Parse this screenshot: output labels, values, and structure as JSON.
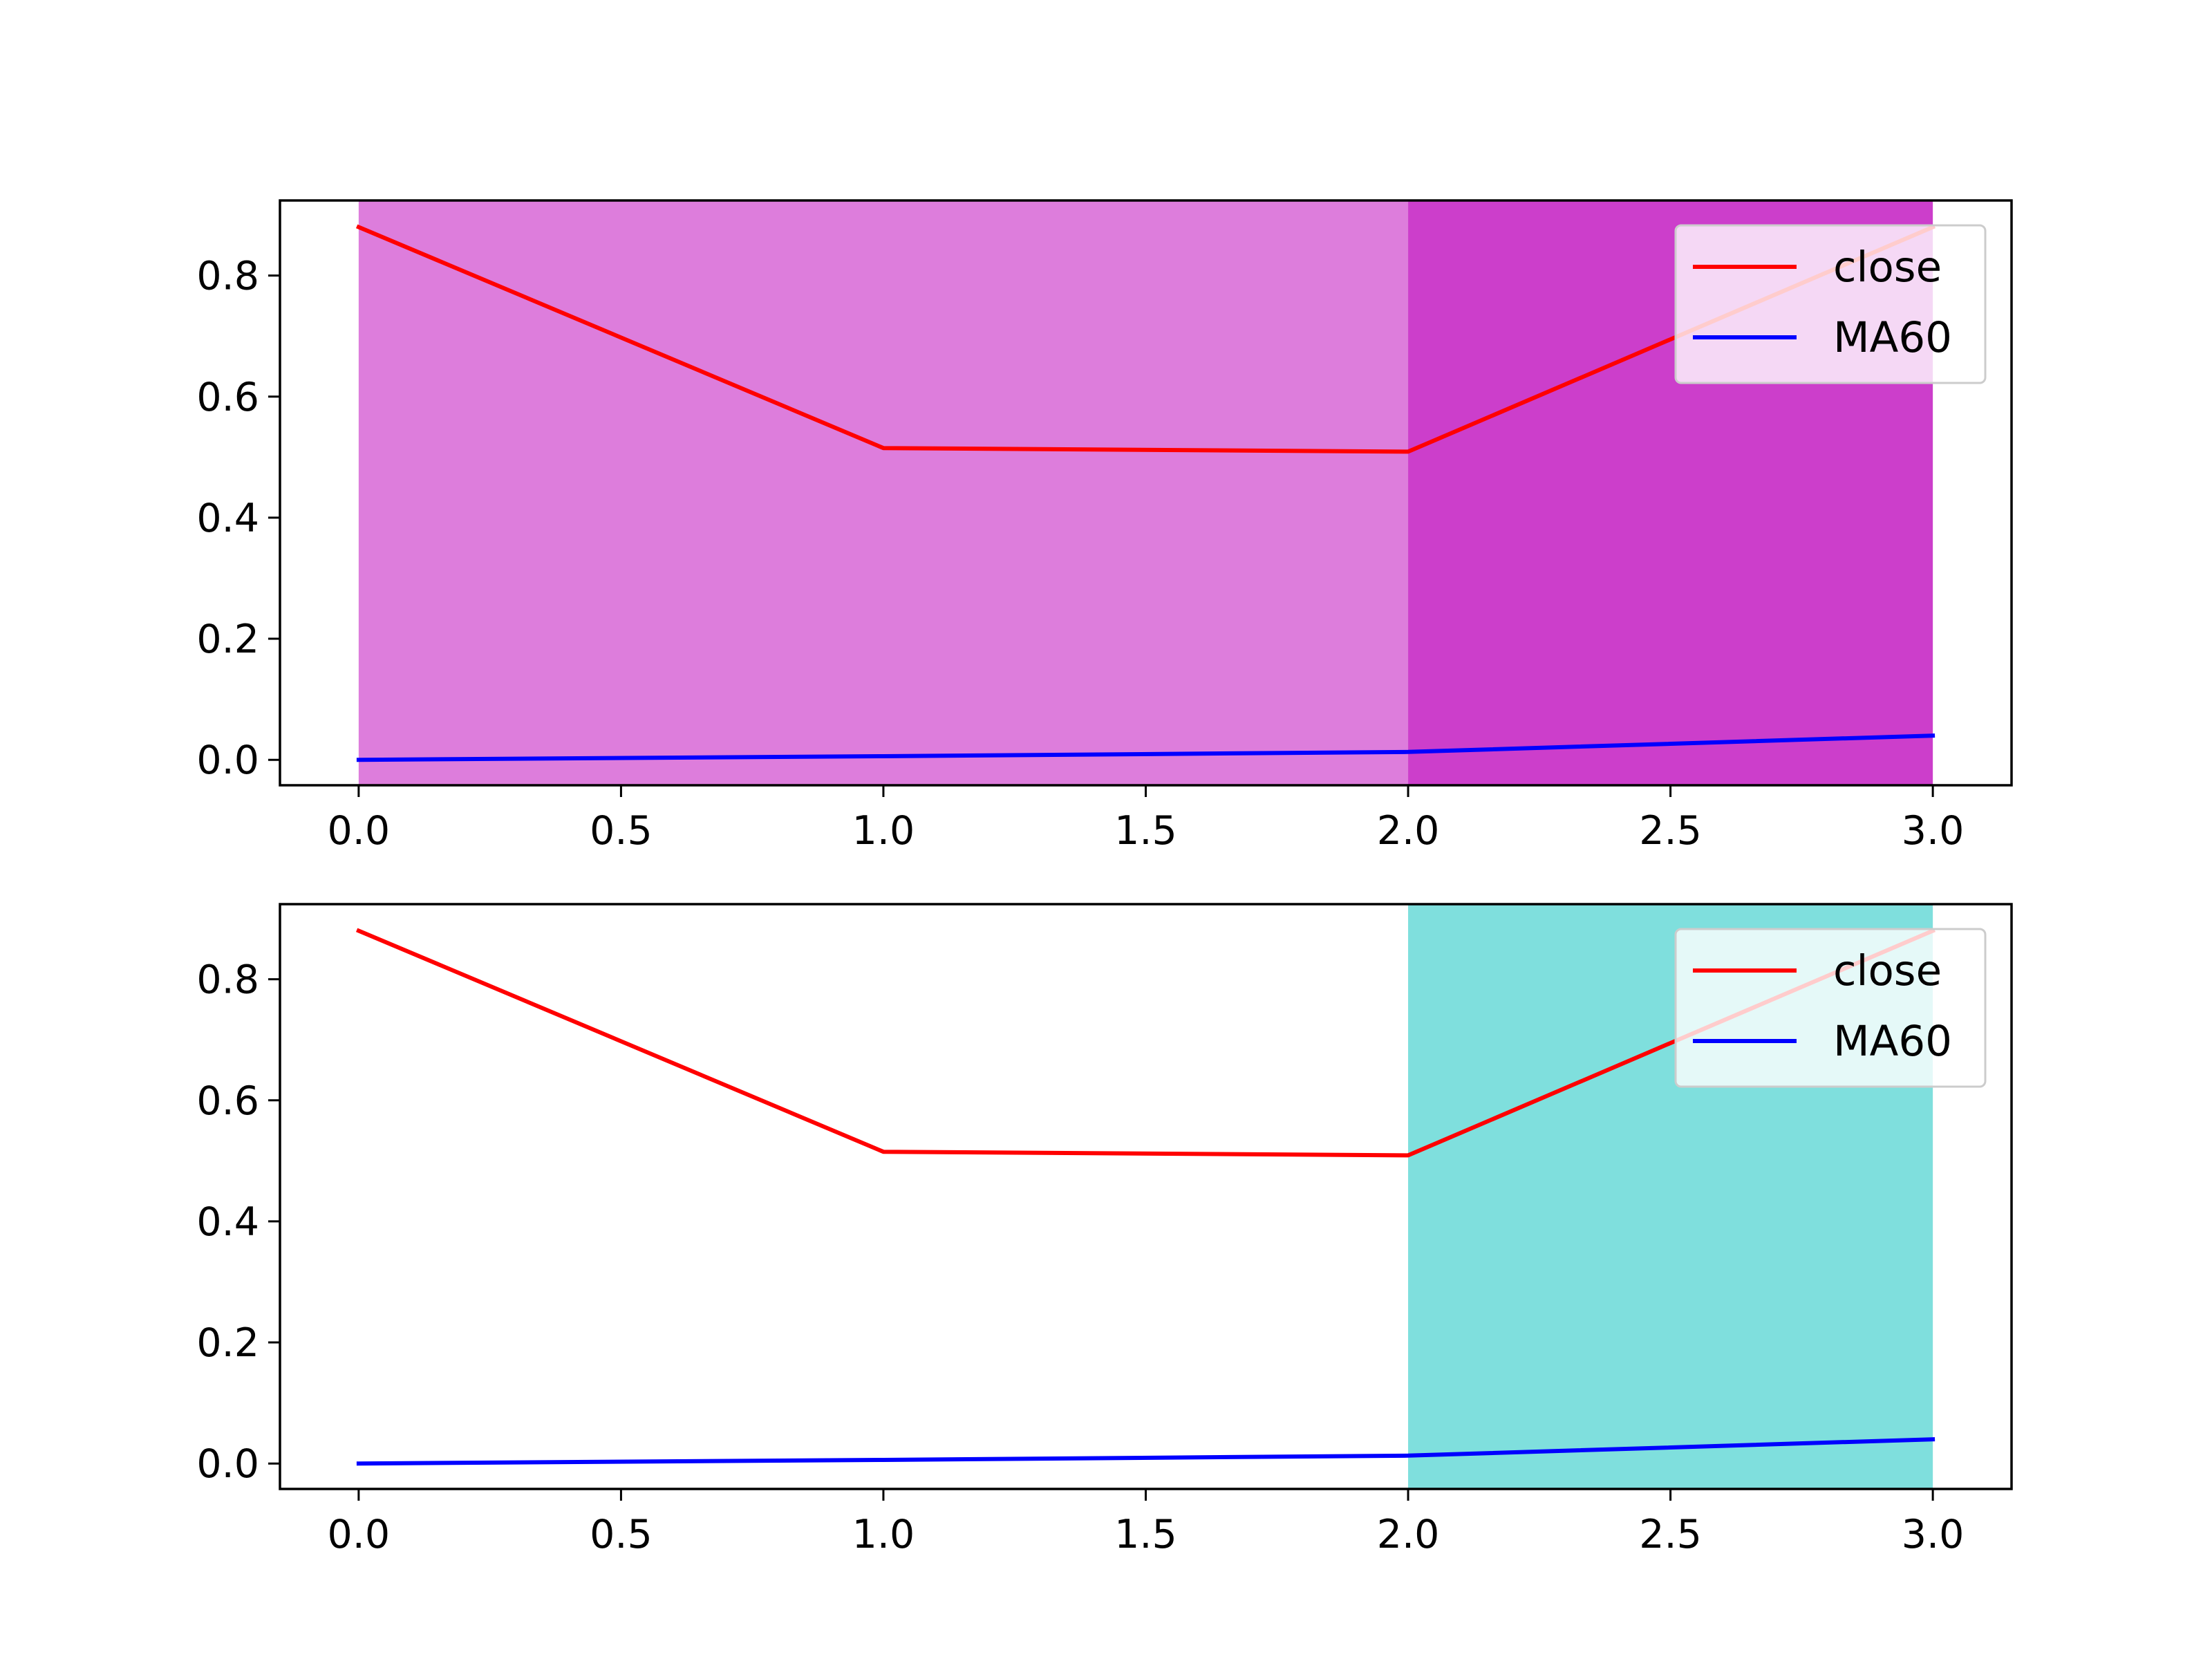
{
  "chart_data": [
    {
      "type": "line",
      "x": [
        0,
        1,
        2,
        3
      ],
      "series": [
        {
          "name": "close",
          "values": [
            0.88,
            0.515,
            0.509,
            0.88
          ],
          "color": "#ff0000"
        },
        {
          "name": "MA60",
          "values": [
            0.0,
            0.006,
            0.013,
            0.04
          ],
          "color": "#0000ff"
        }
      ],
      "shaded_regions": [
        {
          "x_start": 0,
          "x_end": 2,
          "color": "#dd7ddc"
        },
        {
          "x_start": 2,
          "x_end": 3,
          "color": "#cc3ecb"
        }
      ],
      "xlim": [
        -0.15,
        3.15
      ],
      "ylim": [
        -0.042,
        0.924
      ],
      "xticks": [
        0.0,
        0.5,
        1.0,
        1.5,
        2.0,
        2.5,
        3.0
      ],
      "xtick_labels": [
        "0.0",
        "0.5",
        "1.0",
        "1.5",
        "2.0",
        "2.5",
        "3.0"
      ],
      "yticks": [
        0.0,
        0.2,
        0.4,
        0.6,
        0.8
      ],
      "ytick_labels": [
        "0.0",
        "0.2",
        "0.4",
        "0.6",
        "0.8"
      ],
      "legend_position": "upper-right",
      "grid": false
    },
    {
      "type": "line",
      "x": [
        0,
        1,
        2,
        3
      ],
      "series": [
        {
          "name": "close",
          "values": [
            0.88,
            0.515,
            0.509,
            0.88
          ],
          "color": "#ff0000"
        },
        {
          "name": "MA60",
          "values": [
            0.0,
            0.006,
            0.013,
            0.04
          ],
          "color": "#0000ff"
        }
      ],
      "shaded_regions": [
        {
          "x_start": 2,
          "x_end": 3,
          "color": "#7fdfdd"
        }
      ],
      "xlim": [
        -0.15,
        3.15
      ],
      "ylim": [
        -0.042,
        0.924
      ],
      "xticks": [
        0.0,
        0.5,
        1.0,
        1.5,
        2.0,
        2.5,
        3.0
      ],
      "xtick_labels": [
        "0.0",
        "0.5",
        "1.0",
        "1.5",
        "2.0",
        "2.5",
        "3.0"
      ],
      "yticks": [
        0.0,
        0.2,
        0.4,
        0.6,
        0.8
      ],
      "ytick_labels": [
        "0.0",
        "0.2",
        "0.4",
        "0.6",
        "0.8"
      ],
      "legend_position": "upper-right",
      "grid": false
    }
  ]
}
